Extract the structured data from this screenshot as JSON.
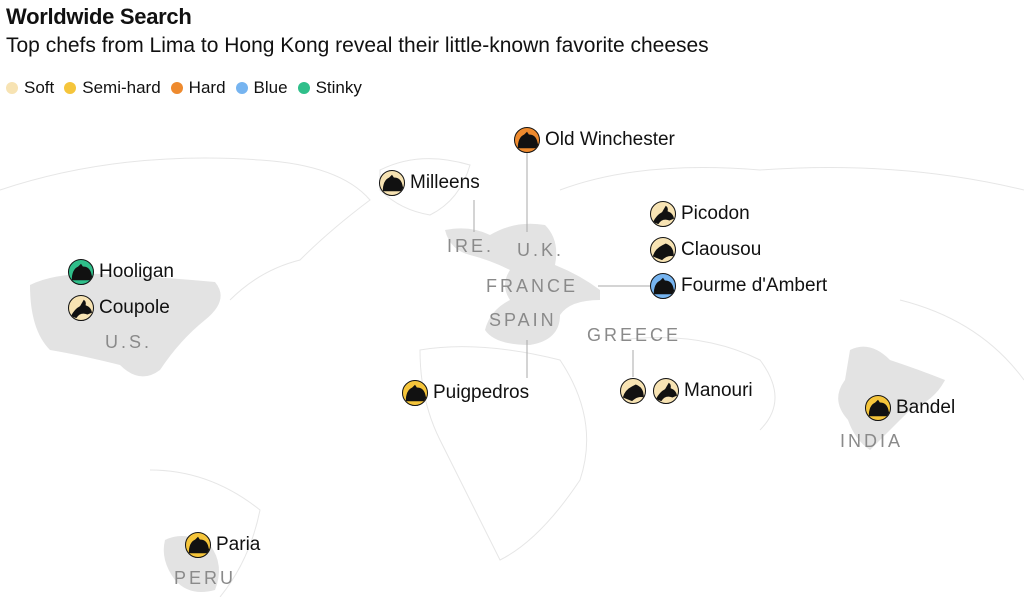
{
  "header": {
    "title": "Worldwide Search",
    "subtitle": "Top chefs from Lima to Hong Kong reveal their little-known favorite cheeses"
  },
  "legend": [
    {
      "label": "Soft",
      "color": "#f7e3b3"
    },
    {
      "label": "Semi-hard",
      "color": "#f5c53b"
    },
    {
      "label": "Hard",
      "color": "#ee8a2e"
    },
    {
      "label": "Blue",
      "color": "#76b4f0"
    },
    {
      "label": "Stinky",
      "color": "#2fbf8a"
    }
  ],
  "countries": [
    "IRE.",
    "U.K.",
    "FRANCE",
    "SPAIN",
    "GREECE",
    "U.S.",
    "INDIA",
    "PERU"
  ],
  "cheeses": [
    {
      "name": "Old Winchester",
      "type": "Hard",
      "animals": [
        "cow-icon"
      ]
    },
    {
      "name": "Milleens",
      "type": "Soft",
      "animals": [
        "cow-icon"
      ]
    },
    {
      "name": "Picodon",
      "type": "Soft",
      "animals": [
        "goat-icon"
      ]
    },
    {
      "name": "Claousou",
      "type": "Soft",
      "animals": [
        "sheep-icon"
      ]
    },
    {
      "name": "Fourme d'Ambert",
      "type": "Blue",
      "animals": [
        "cow-icon"
      ]
    },
    {
      "name": "Hooligan",
      "type": "Stinky",
      "animals": [
        "cow-icon"
      ]
    },
    {
      "name": "Coupole",
      "type": "Soft",
      "animals": [
        "goat-icon"
      ]
    },
    {
      "name": "Puigpedros",
      "type": "Semi-hard",
      "animals": [
        "cow-icon"
      ]
    },
    {
      "name": "Manouri",
      "type": "Soft",
      "animals": [
        "sheep-icon",
        "goat-icon"
      ]
    },
    {
      "name": "Bandel",
      "type": "Semi-hard",
      "animals": [
        "cow-icon"
      ]
    },
    {
      "name": "Paria",
      "type": "Semi-hard",
      "animals": [
        "cow-icon"
      ]
    }
  ]
}
